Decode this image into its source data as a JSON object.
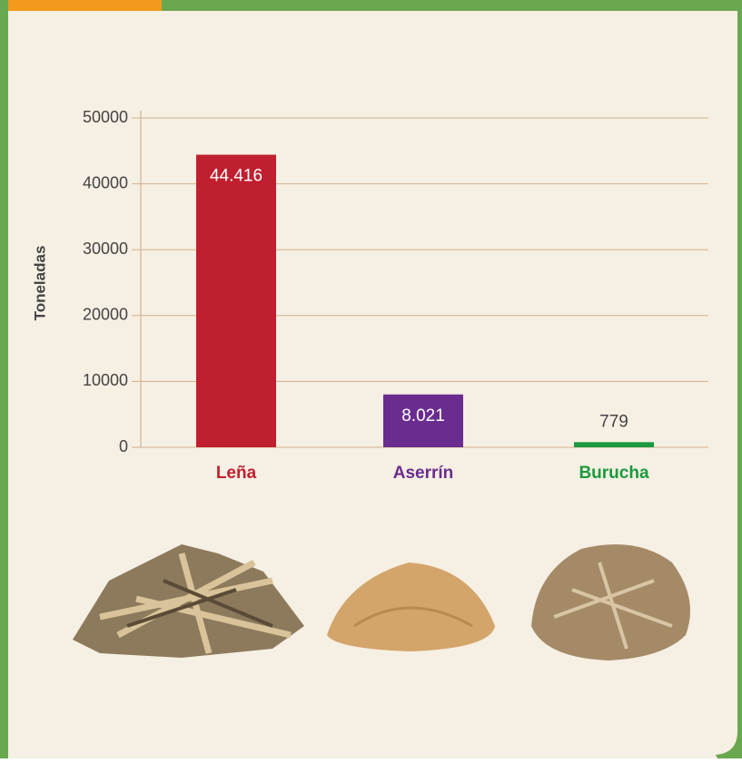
{
  "chart_data": {
    "type": "bar",
    "y_axis_label": "Toneladas",
    "categories": [
      "Leña",
      "Aserrín",
      "Burucha"
    ],
    "values": [
      44416,
      8021,
      779
    ],
    "value_labels": [
      "44.416",
      "8.021",
      "779"
    ],
    "colors": [
      "#c01f2f",
      "#6a2d8f",
      "#1a9a3e"
    ],
    "ylim": [
      0,
      50000
    ],
    "yticks": [
      0,
      10000,
      20000,
      30000,
      40000,
      50000
    ],
    "grid": true
  }
}
